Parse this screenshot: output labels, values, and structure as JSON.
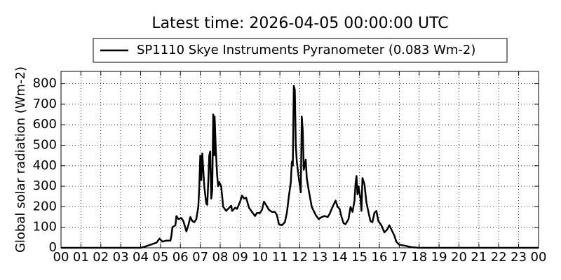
{
  "chart_data": {
    "type": "line",
    "title": "Latest time: 2026-04-05 00:00:00 UTC",
    "y_label": "Global solar radiation (Wm-2)",
    "legend": "upper center",
    "grid": true,
    "x": [
      0,
      4.0,
      4.2,
      4.5,
      4.8,
      4.95,
      5.1,
      5.3,
      5.5,
      5.55,
      5.6,
      5.75,
      5.8,
      5.9,
      6.05,
      6.15,
      6.3,
      6.4,
      6.5,
      6.6,
      6.7,
      6.8,
      6.9,
      6.95,
      7.0,
      7.05,
      7.1,
      7.15,
      7.2,
      7.3,
      7.35,
      7.4,
      7.45,
      7.5,
      7.55,
      7.6,
      7.65,
      7.7,
      7.72,
      7.78,
      7.85,
      7.9,
      7.95,
      8.05,
      8.15,
      8.3,
      8.45,
      8.55,
      8.6,
      8.75,
      8.85,
      9.0,
      9.1,
      9.2,
      9.3,
      9.45,
      9.6,
      9.75,
      9.85,
      10.0,
      10.1,
      10.2,
      10.3,
      10.45,
      10.6,
      10.75,
      10.85,
      10.95,
      11.1,
      11.25,
      11.35,
      11.45,
      11.55,
      11.6,
      11.65,
      11.7,
      11.75,
      11.8,
      11.85,
      11.95,
      12.05,
      12.1,
      12.15,
      12.2,
      12.3,
      12.35,
      12.45,
      12.6,
      12.8,
      12.95,
      13.1,
      13.25,
      13.4,
      13.5,
      13.65,
      13.8,
      13.9,
      14.0,
      14.1,
      14.2,
      14.3,
      14.45,
      14.55,
      14.65,
      14.75,
      14.8,
      14.85,
      14.9,
      14.95,
      15.05,
      15.1,
      15.15,
      15.25,
      15.35,
      15.45,
      15.55,
      15.65,
      15.75,
      15.85,
      15.95,
      16.1,
      16.25,
      16.4,
      16.5,
      16.6,
      16.75,
      16.85,
      17.0,
      17.3,
      17.6,
      18.0,
      24
    ],
    "series": [
      {
        "name": "SP1110 Skye Instruments Pyranometer (0.083 Wm-2)",
        "color": "#000000",
        "values": [
          0,
          0,
          5,
          15,
          25,
          45,
          30,
          35,
          35,
          60,
          100,
          110,
          155,
          140,
          145,
          130,
          80,
          110,
          150,
          130,
          125,
          140,
          200,
          300,
          450,
          330,
          460,
          380,
          300,
          215,
          210,
          320,
          450,
          470,
          240,
          280,
          650,
          450,
          640,
          480,
          350,
          300,
          320,
          300,
          200,
          180,
          195,
          205,
          180,
          195,
          190,
          225,
          255,
          240,
          245,
          195,
          175,
          155,
          170,
          170,
          185,
          225,
          210,
          185,
          175,
          175,
          160,
          115,
          110,
          125,
          170,
          250,
          320,
          420,
          400,
          790,
          770,
          500,
          420,
          340,
          270,
          640,
          570,
          380,
          430,
          340,
          280,
          200,
          160,
          140,
          150,
          155,
          150,
          165,
          200,
          230,
          200,
          190,
          150,
          120,
          115,
          140,
          200,
          175,
          230,
          310,
          350,
          260,
          300,
          240,
          180,
          340,
          310,
          220,
          175,
          130,
          125,
          170,
          180,
          130,
          110,
          75,
          90,
          110,
          90,
          60,
          30,
          15,
          10,
          3,
          0,
          0
        ]
      }
    ],
    "xlim": [
      0,
      24
    ],
    "xticks": [
      {
        "value": 0,
        "label": "00"
      },
      {
        "value": 1,
        "label": "01"
      },
      {
        "value": 2,
        "label": "02"
      },
      {
        "value": 3,
        "label": "03"
      },
      {
        "value": 4,
        "label": "04"
      },
      {
        "value": 5,
        "label": "05"
      },
      {
        "value": 6,
        "label": "06"
      },
      {
        "value": 7,
        "label": "07"
      },
      {
        "value": 8,
        "label": "08"
      },
      {
        "value": 9,
        "label": "09"
      },
      {
        "value": 10,
        "label": "10"
      },
      {
        "value": 11,
        "label": "11"
      },
      {
        "value": 12,
        "label": "12"
      },
      {
        "value": 13,
        "label": "13"
      },
      {
        "value": 14,
        "label": "14"
      },
      {
        "value": 15,
        "label": "15"
      },
      {
        "value": 16,
        "label": "16"
      },
      {
        "value": 17,
        "label": "17"
      },
      {
        "value": 18,
        "label": "18"
      },
      {
        "value": 19,
        "label": "19"
      },
      {
        "value": 20,
        "label": "20"
      },
      {
        "value": 21,
        "label": "21"
      },
      {
        "value": 22,
        "label": "22"
      },
      {
        "value": 23,
        "label": "23"
      },
      {
        "value": 24,
        "label": "00"
      }
    ],
    "ylim": [
      0,
      860
    ],
    "yticks": [
      0,
      100,
      200,
      300,
      400,
      500,
      600,
      700,
      800
    ]
  }
}
